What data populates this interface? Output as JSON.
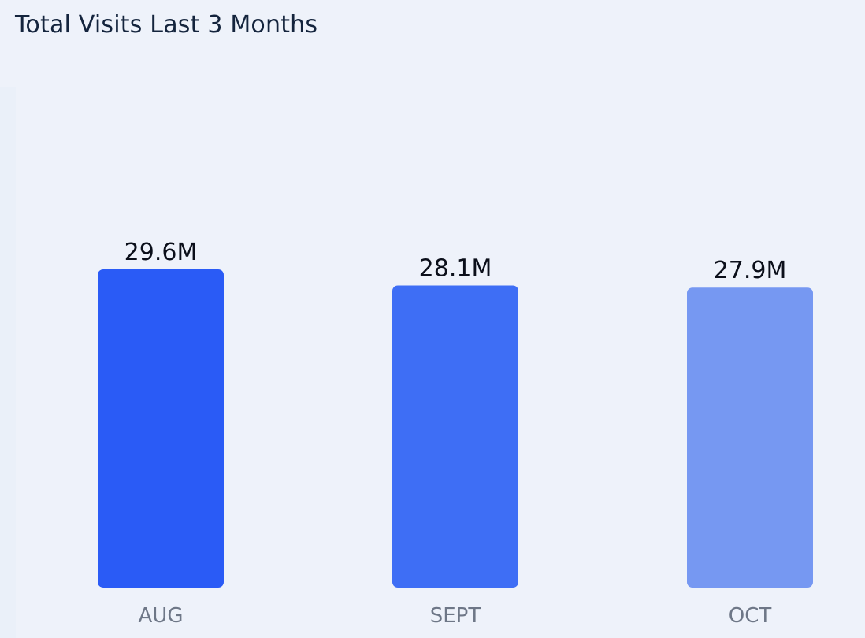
{
  "chart_data": {
    "type": "bar",
    "title": "Total Visits Last 3 Months",
    "categories": [
      "AUG",
      "SEPT",
      "OCT"
    ],
    "values": [
      29.6,
      28.1,
      27.9
    ],
    "value_labels": [
      "29.6M",
      "28.1M",
      "27.9M"
    ],
    "unit": "M",
    "ylim": [
      0,
      29.6
    ],
    "grid": false,
    "legend": "none",
    "colors": [
      "#2a5bf6",
      "#3e6ef5",
      "#7698f2"
    ]
  }
}
